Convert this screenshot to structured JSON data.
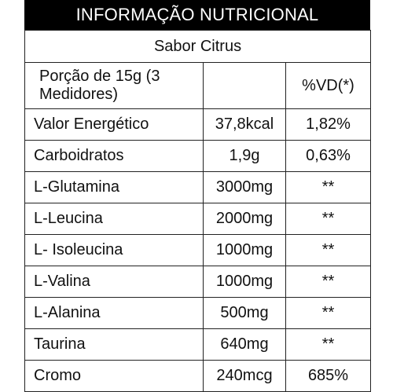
{
  "header": {
    "title": "INFORMAÇÃO NUTRICIONAL"
  },
  "flavor": "Sabor Citrus",
  "portion": {
    "label": "Porção de 15g (3 Medidores)",
    "amount": "",
    "vd_header": "%VD(*)"
  },
  "rows": [
    {
      "name": "Valor Energético",
      "amount": "37,8kcal",
      "vd": "1,82%"
    },
    {
      "name": "Carboidratos",
      "amount": "1,9g",
      "vd": "0,63%"
    },
    {
      "name": "L-Glutamina",
      "amount": "3000mg",
      "vd": "**"
    },
    {
      "name": "L-Leucina",
      "amount": "2000mg",
      "vd": "**"
    },
    {
      "name": "L- Isoleucina",
      "amount": "1000mg",
      "vd": "**"
    },
    {
      "name": "L-Valina",
      "amount": "1000mg",
      "vd": "**"
    },
    {
      "name": "L-Alanina",
      "amount": "500mg",
      "vd": "**"
    },
    {
      "name": "Taurina",
      "amount": "640mg",
      "vd": "**"
    },
    {
      "name": "Cromo",
      "amount": "240mcg",
      "vd": "685%"
    }
  ],
  "colors": {
    "header_bg": "#000000",
    "header_text": "#ffffff",
    "border": "#222222"
  }
}
